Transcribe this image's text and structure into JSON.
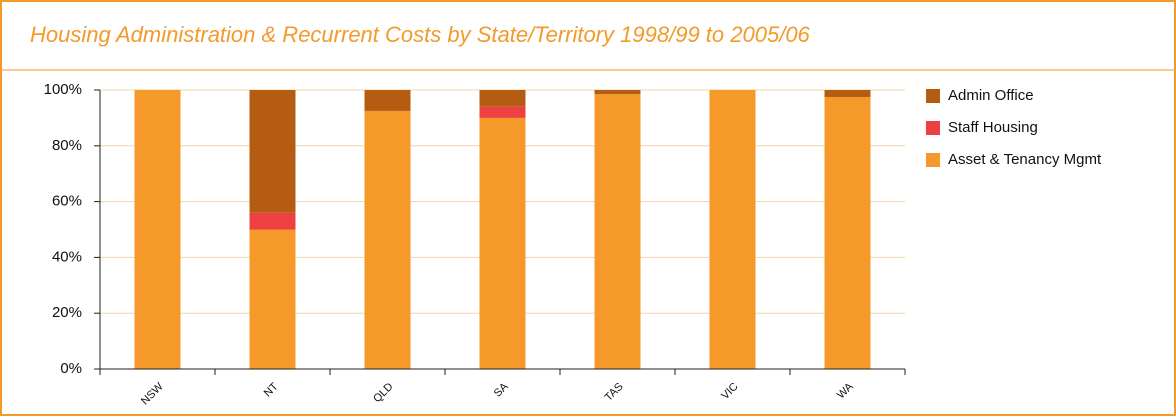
{
  "chart_data": {
    "type": "stacked_bar",
    "title": "Housing Administration & Recurrent Costs by State/Territory 1998/99 to 2005/06",
    "categories": [
      "NSW",
      "NT",
      "QLD",
      "SA",
      "TAS",
      "VIC",
      "WA"
    ],
    "series": [
      {
        "name": "Asset & Tenancy Mgmt",
        "color": "#f59a2a",
        "values": [
          100,
          50,
          92.5,
          90,
          98.5,
          100,
          97.5
        ]
      },
      {
        "name": "Staff Housing",
        "color": "#ee4040",
        "values": [
          0,
          6,
          0,
          4,
          0,
          0,
          0
        ]
      },
      {
        "name": "Admin Office",
        "color": "#b35c12",
        "values": [
          0,
          44,
          7.5,
          6,
          1.5,
          0,
          2.5
        ]
      }
    ],
    "ylim": [
      0,
      100
    ],
    "yticks": [
      {
        "value": 0,
        "label": "0%"
      },
      {
        "value": 20,
        "label": "20%"
      },
      {
        "value": 40,
        "label": "40%"
      },
      {
        "value": 60,
        "label": "60%"
      },
      {
        "value": 80,
        "label": "80%"
      },
      {
        "value": 100,
        "label": "100%"
      }
    ],
    "grid": true,
    "legend": "right"
  }
}
